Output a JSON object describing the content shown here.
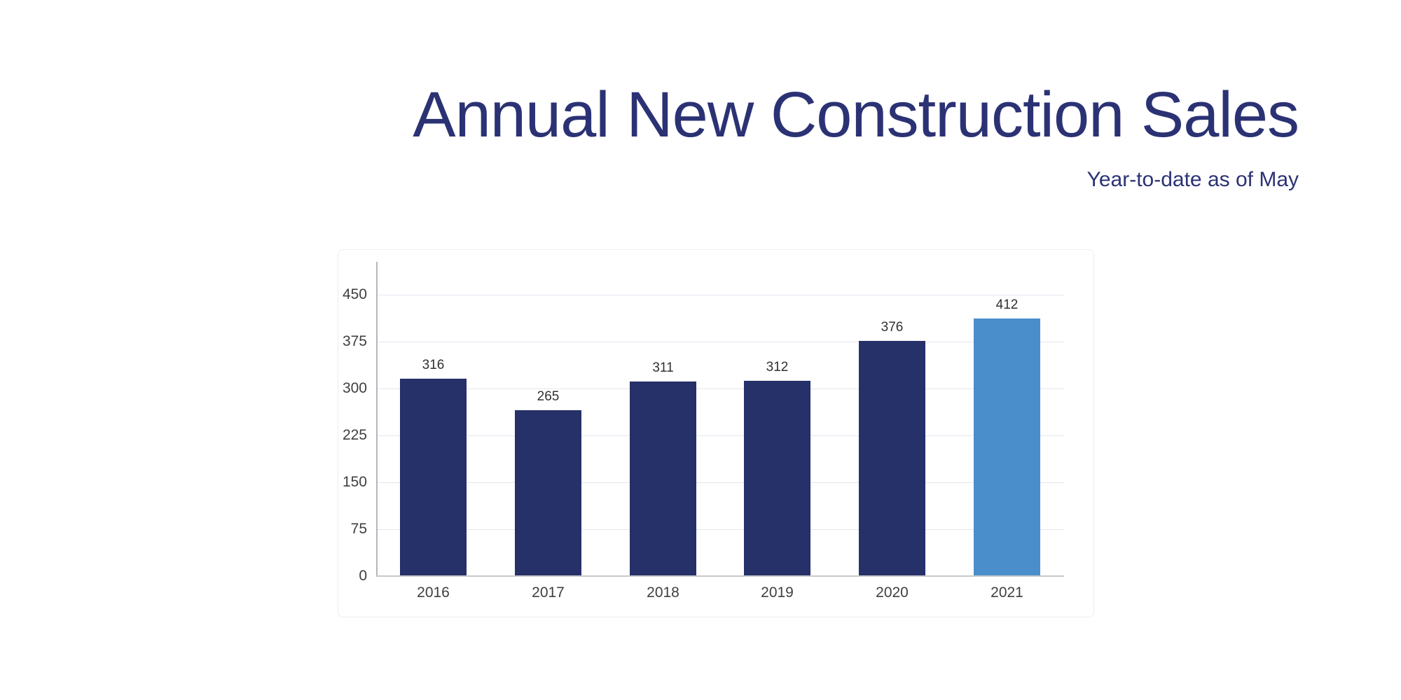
{
  "header": {
    "title": "Annual New Construction Sales",
    "subtitle": "Year-to-date as of May"
  },
  "colors": {
    "title_text": "#2b3274",
    "bar_default": "#263069",
    "bar_highlight": "#4a8ecb",
    "gridline": "#e2e6ee",
    "y_axis_line": "#b3b7bd",
    "baseline": "#c9c9c9",
    "tick_text": "#3f3f3f",
    "value_label_text": "#303030"
  },
  "chart_data": {
    "type": "bar",
    "title": "Annual New Construction Sales",
    "subtitle": "Year-to-date as of May",
    "categories": [
      "2016",
      "2017",
      "2018",
      "2019",
      "2020",
      "2021"
    ],
    "values": [
      316,
      265,
      311,
      312,
      376,
      412
    ],
    "highlight_category": "2021",
    "highlight_index": 5,
    "xlabel": "",
    "ylabel": "",
    "yticks": [
      0,
      75,
      150,
      225,
      300,
      375,
      450
    ],
    "ylim": [
      0,
      502
    ],
    "grid": "horizontal",
    "legend": "none",
    "value_labels": "above-bars"
  }
}
